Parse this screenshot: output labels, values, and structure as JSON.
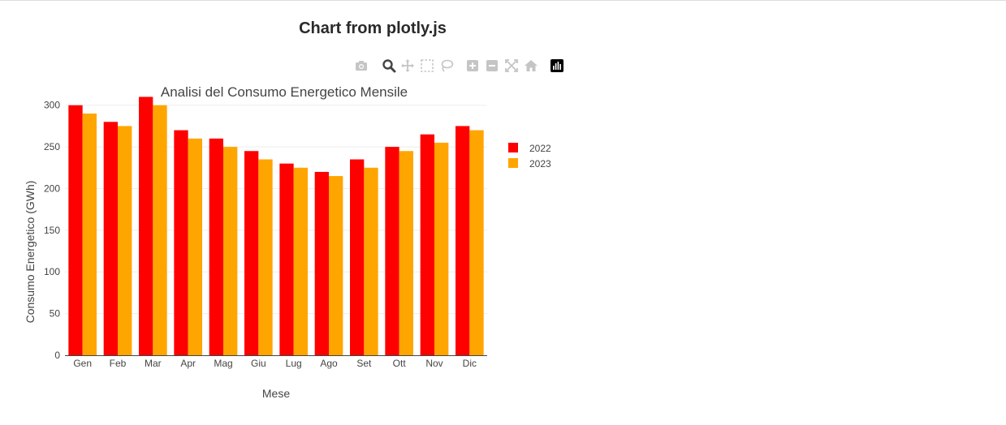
{
  "page": {
    "title": "Chart from plotly.js"
  },
  "modebar": {
    "buttons": [
      {
        "name": "camera-icon",
        "label": "Download plot as a png"
      },
      {
        "name": "zoom-icon",
        "label": "Zoom"
      },
      {
        "name": "pan-icon",
        "label": "Pan"
      },
      {
        "name": "box-select-icon",
        "label": "Box Select"
      },
      {
        "name": "lasso-select-icon",
        "label": "Lasso Select"
      },
      {
        "name": "zoom-in-icon",
        "label": "Zoom in"
      },
      {
        "name": "zoom-out-icon",
        "label": "Zoom out"
      },
      {
        "name": "autoscale-icon",
        "label": "Autoscale"
      },
      {
        "name": "reset-axes-icon",
        "label": "Reset axes"
      },
      {
        "name": "plotly-logo-icon",
        "label": "Produced with Plotly"
      }
    ]
  },
  "chart_data": {
    "type": "bar",
    "title": "Analisi del Consumo Energetico Mensile",
    "xlabel": "Mese",
    "ylabel": "Consumo Energetico (GWh)",
    "categories": [
      "Gen",
      "Feb",
      "Mar",
      "Apr",
      "Mag",
      "Giu",
      "Lug",
      "Ago",
      "Set",
      "Ott",
      "Nov",
      "Dic"
    ],
    "series": [
      {
        "name": "2022",
        "color": "#ff0000",
        "values": [
          300,
          280,
          310,
          270,
          260,
          245,
          230,
          220,
          235,
          250,
          265,
          275
        ]
      },
      {
        "name": "2023",
        "color": "#ffa500",
        "values": [
          290,
          275,
          300,
          260,
          250,
          235,
          225,
          215,
          225,
          245,
          255,
          270
        ]
      }
    ],
    "ylim": [
      0,
      326
    ],
    "yticks": [
      0,
      50,
      100,
      150,
      200,
      250,
      300
    ],
    "grid": true,
    "legend": "top-right"
  }
}
